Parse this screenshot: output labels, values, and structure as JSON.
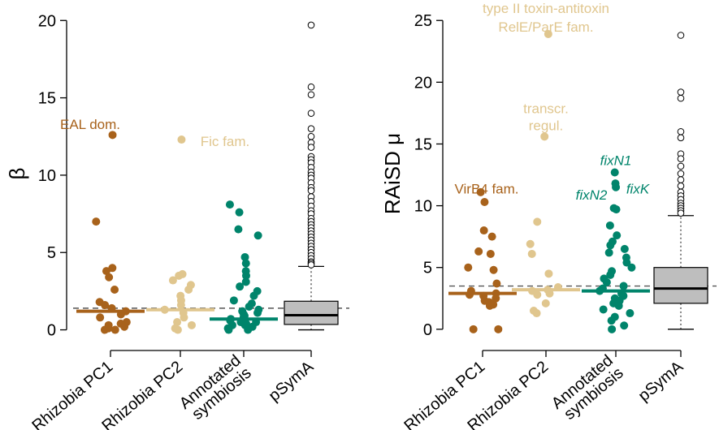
{
  "colors": {
    "Rhizobia PC1": "#A8621B",
    "Rhizobia PC2": "#E0C68E",
    "Annotated symbiosis": "#00846B",
    "pSymA": "#000000",
    "box_fill": "#BEBEBE"
  },
  "chart_data": [
    {
      "type": "scatter",
      "ylabel": "β",
      "ylim": [
        -0.6,
        20.8
      ],
      "yticks": [
        0,
        5,
        10,
        15,
        20
      ],
      "categories": [
        "Rhizobia PC1",
        "Rhizobia PC2",
        "Annotated symbiosis",
        "pSymA"
      ],
      "category_labels": [
        [
          "Rhizobia PC1"
        ],
        [
          "Rhizobia PC2"
        ],
        [
          "Annotated",
          "symbiosis"
        ],
        [
          "pSymA"
        ]
      ],
      "reference_line": 1.4,
      "series": [
        {
          "category": "Rhizobia PC1",
          "median": 1.2,
          "values": [
            12.6,
            7.0,
            4.0,
            3.8,
            3.4,
            2.6,
            1.8,
            1.6,
            1.4,
            1.2,
            1.0,
            0.8,
            0.5,
            0.4,
            0.3,
            0.2,
            0.1,
            0.0,
            0.0
          ]
        },
        {
          "category": "Rhizobia PC2",
          "median": 1.3,
          "values": [
            12.3,
            3.6,
            3.5,
            3.2,
            2.9,
            2.6,
            2.2,
            1.9,
            1.6,
            1.3,
            1.1,
            0.8,
            0.5,
            0.3,
            0.1,
            0.0
          ]
        },
        {
          "category": "Annotated symbiosis",
          "median": 0.7,
          "values": [
            8.1,
            7.6,
            6.5,
            6.1,
            4.7,
            4.3,
            3.8,
            3.5,
            3.1,
            2.8,
            2.5,
            2.2,
            1.9,
            1.7,
            1.5,
            1.3,
            1.2,
            1.1,
            1.0,
            0.9,
            0.8,
            0.7,
            0.6,
            0.5,
            0.5,
            0.4,
            0.3,
            0.3,
            0.2,
            0.1,
            0.0,
            0.0
          ]
        },
        {
          "category": "pSymA",
          "type": "box",
          "box": {
            "q1": 0.35,
            "median": 0.95,
            "q3": 1.85,
            "whisker_low": 0.0,
            "whisker_high": 4.1
          },
          "outliers": [
            19.7,
            15.7,
            15.2,
            14.0,
            13.0,
            12.5,
            12.1,
            11.8,
            11.2,
            11.0,
            10.8,
            10.5,
            10.2,
            10.0,
            9.8,
            9.5,
            9.2,
            9.0,
            8.6,
            8.3,
            8.0,
            7.7,
            7.5,
            7.2,
            7.0,
            6.8,
            6.6,
            6.4,
            6.2,
            6.0,
            5.8,
            5.6,
            5.4,
            5.2,
            5.0,
            4.8,
            4.6,
            4.4,
            4.3,
            4.2
          ]
        }
      ],
      "annotations": [
        {
          "text": "EAL dom.",
          "category": "Rhizobia PC1",
          "y": 13.3,
          "dx": -25,
          "color": "Rhizobia PC1",
          "style": "normal"
        },
        {
          "text": "Fic fam.",
          "category": "Rhizobia PC2",
          "y": 12.2,
          "dx": 55,
          "color": "Rhizobia PC2",
          "style": "normal"
        }
      ]
    },
    {
      "type": "scatter",
      "ylabel": "RAiSD μ",
      "ylim": [
        -0.8,
        26.0
      ],
      "yticks": [
        0,
        5,
        10,
        15,
        20,
        25
      ],
      "categories": [
        "Rhizobia PC1",
        "Rhizobia PC2",
        "Annotated symbiosis",
        "pSymA"
      ],
      "category_labels": [
        [
          "Rhizobia PC1"
        ],
        [
          "Rhizobia PC2"
        ],
        [
          "Annotated",
          "symbiosis"
        ],
        [
          "pSymA"
        ]
      ],
      "reference_line": 3.5,
      "series": [
        {
          "category": "Rhizobia PC1",
          "median": 2.9,
          "values": [
            11.1,
            10.3,
            8.0,
            7.5,
            6.3,
            6.1,
            5.0,
            4.8,
            3.7,
            3.1,
            2.9,
            2.8,
            2.7,
            2.5,
            2.3,
            2.2,
            2.0,
            1.9,
            0.0,
            0.0
          ]
        },
        {
          "category": "Rhizobia PC2",
          "median": 3.2,
          "values": [
            23.9,
            15.6,
            8.7,
            6.9,
            6.1,
            4.5,
            3.4,
            3.2,
            3.1,
            2.9,
            2.8,
            2.1,
            1.5,
            1.3
          ]
        },
        {
          "category": "Annotated symbiosis",
          "median": 3.1,
          "values": [
            12.7,
            11.8,
            11.5,
            9.8,
            9.7,
            8.4,
            7.6,
            7.1,
            6.8,
            6.5,
            6.2,
            5.8,
            5.4,
            5.0,
            4.7,
            4.4,
            4.1,
            3.8,
            3.5,
            3.3,
            3.1,
            2.9,
            2.7,
            2.5,
            2.3,
            2.1,
            1.9,
            1.6,
            1.3,
            1.0,
            0.7,
            0.3,
            0.0
          ]
        },
        {
          "category": "pSymA",
          "type": "box",
          "box": {
            "q1": 2.1,
            "median": 3.3,
            "q3": 5.0,
            "whisker_low": 0.0,
            "whisker_high": 9.2
          },
          "outliers": [
            23.8,
            19.2,
            18.7,
            16.0,
            15.5,
            14.2,
            13.8,
            13.2,
            12.6,
            12.1,
            11.6,
            11.1,
            10.8,
            10.5,
            10.2,
            10.0,
            9.8,
            9.6,
            9.4
          ]
        }
      ],
      "annotations": [
        {
          "text": "type II toxin-antitoxin",
          "category": "Rhizobia PC2",
          "y": 26.0,
          "dx": 0,
          "color": "Rhizobia PC2",
          "style": "normal"
        },
        {
          "text": "RelE/ParE fam.",
          "category": "Rhizobia PC2",
          "y": 24.5,
          "dx": 0,
          "color": "Rhizobia PC2",
          "style": "normal"
        },
        {
          "text": "transcr.",
          "category": "Rhizobia PC2",
          "y": 17.9,
          "dx": 0,
          "color": "Rhizobia PC2",
          "style": "normal"
        },
        {
          "text": "regul.",
          "category": "Rhizobia PC2",
          "y": 16.5,
          "dx": 0,
          "color": "Rhizobia PC2",
          "style": "normal"
        },
        {
          "text": "VirB4 fam.",
          "category": "Rhizobia PC1",
          "y": 11.4,
          "dx": 5,
          "color": "Rhizobia PC1",
          "style": "normal"
        },
        {
          "text": "fixN1",
          "category": "Annotated symbiosis",
          "y": 13.7,
          "dx": 0,
          "color": "Annotated symbiosis",
          "style": "italic"
        },
        {
          "text": "fixN2",
          "category": "Annotated symbiosis",
          "y": 10.9,
          "dx": -30,
          "color": "Annotated symbiosis",
          "style": "italic"
        },
        {
          "text": "fixK",
          "category": "Annotated symbiosis",
          "y": 11.4,
          "dx": 27,
          "color": "Annotated symbiosis",
          "style": "italic"
        }
      ]
    }
  ]
}
